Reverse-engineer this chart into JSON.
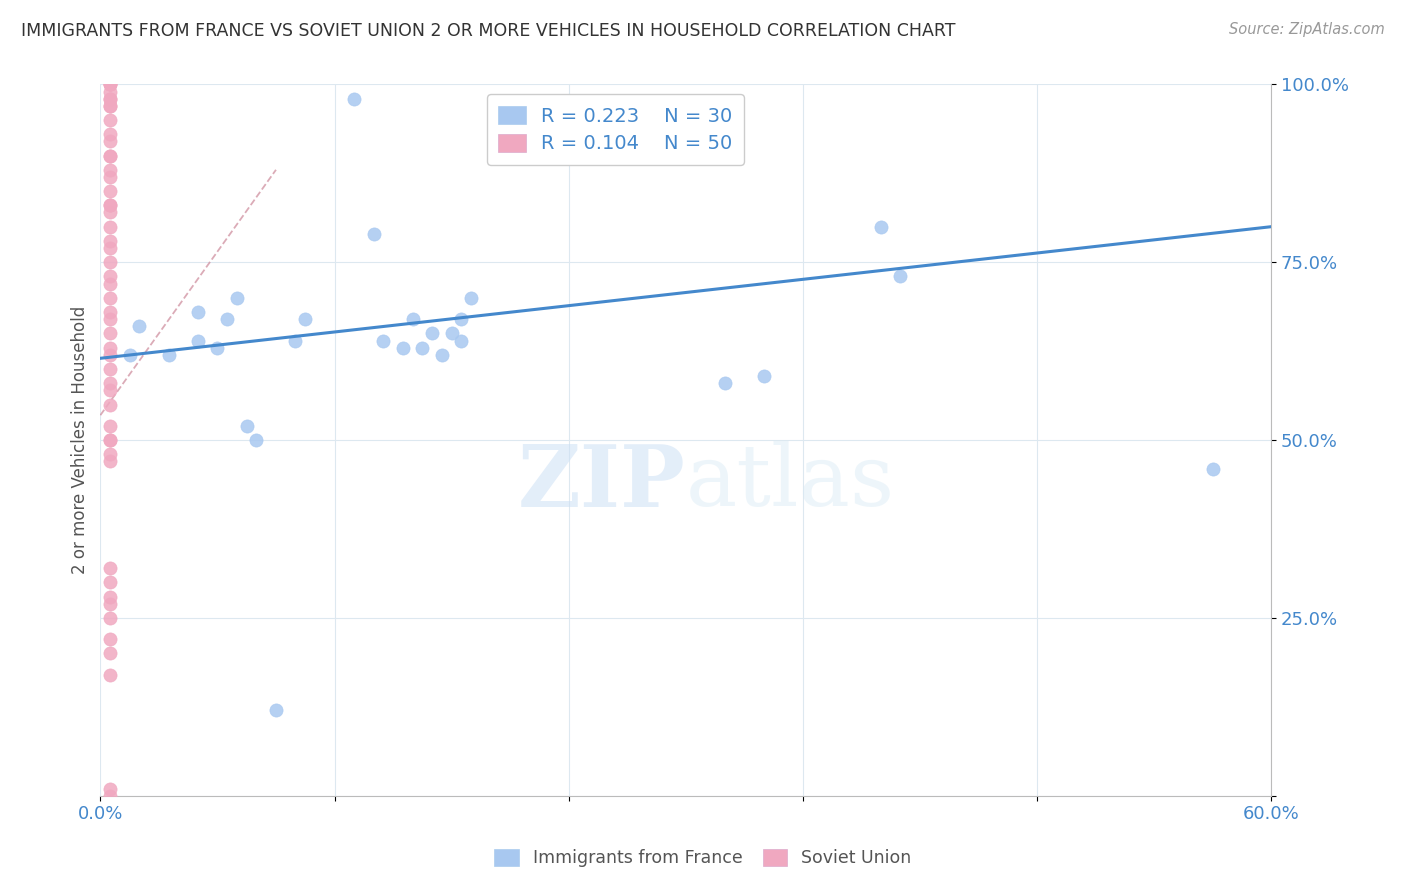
{
  "title": "IMMIGRANTS FROM FRANCE VS SOVIET UNION 2 OR MORE VEHICLES IN HOUSEHOLD CORRELATION CHART",
  "source": "Source: ZipAtlas.com",
  "ylabel": "2 or more Vehicles in Household",
  "watermark": "ZIPatlas",
  "xlim": [
    0.0,
    0.6
  ],
  "ylim": [
    0.0,
    1.0
  ],
  "ytick_vals": [
    0.0,
    0.25,
    0.5,
    0.75,
    1.0
  ],
  "ytick_labels": [
    "",
    "25.0%",
    "50.0%",
    "75.0%",
    "100.0%"
  ],
  "xtick_vals": [
    0.0,
    0.12,
    0.24,
    0.36,
    0.48,
    0.6
  ],
  "xtick_labels": [
    "0.0%",
    "",
    "",
    "",
    "",
    "60.0%"
  ],
  "legend_france_R": "0.223",
  "legend_france_N": "30",
  "legend_soviet_R": "0.104",
  "legend_soviet_N": "50",
  "france_color": "#a8c8f0",
  "france_edge_color": "#7aaad0",
  "soviet_color": "#f0a8c0",
  "soviet_edge_color": "#d080a0",
  "trendline_france_color": "#4488cc",
  "trendline_soviet_color": "#cc8899",
  "france_x": [
    0.015,
    0.02,
    0.035,
    0.05,
    0.05,
    0.06,
    0.065,
    0.07,
    0.075,
    0.08,
    0.09,
    0.1,
    0.105,
    0.13,
    0.14,
    0.145,
    0.155,
    0.16,
    0.165,
    0.17,
    0.175,
    0.18,
    0.185,
    0.185,
    0.19,
    0.32,
    0.34,
    0.4,
    0.41,
    0.57
  ],
  "france_y": [
    0.62,
    0.66,
    0.62,
    0.64,
    0.68,
    0.63,
    0.67,
    0.7,
    0.52,
    0.5,
    0.12,
    0.64,
    0.67,
    0.98,
    0.79,
    0.64,
    0.63,
    0.67,
    0.63,
    0.65,
    0.62,
    0.65,
    0.64,
    0.67,
    0.7,
    0.58,
    0.59,
    0.8,
    0.73,
    0.46
  ],
  "soviet_x": [
    0.005,
    0.005,
    0.005,
    0.005,
    0.005,
    0.005,
    0.005,
    0.005,
    0.005,
    0.005,
    0.005,
    0.005,
    0.005,
    0.005,
    0.005,
    0.005,
    0.005,
    0.005,
    0.005,
    0.005,
    0.005,
    0.005,
    0.005,
    0.005,
    0.005,
    0.005,
    0.005,
    0.005,
    0.005,
    0.005,
    0.005,
    0.005,
    0.005,
    0.005,
    0.005,
    0.005,
    0.005,
    0.005,
    0.005,
    0.005,
    0.005,
    0.005,
    0.005,
    0.005,
    0.005,
    0.005,
    0.005,
    0.005,
    0.005,
    0.005
  ],
  "soviet_y": [
    0.0,
    0.01,
    0.17,
    0.2,
    0.22,
    0.25,
    0.27,
    0.28,
    0.3,
    0.32,
    0.47,
    0.48,
    0.5,
    0.5,
    0.52,
    0.55,
    0.57,
    0.58,
    0.6,
    0.62,
    0.63,
    0.65,
    0.67,
    0.68,
    0.7,
    0.72,
    0.73,
    0.75,
    0.77,
    0.78,
    0.8,
    0.82,
    0.83,
    0.83,
    0.85,
    0.87,
    0.88,
    0.9,
    0.9,
    0.92,
    0.93,
    0.95,
    0.97,
    0.97,
    0.98,
    0.98,
    0.99,
    1.0,
    1.0,
    1.0
  ],
  "france_trend_x": [
    0.0,
    0.6
  ],
  "france_trend_y": [
    0.615,
    0.8
  ],
  "soviet_trend_x": [
    0.0,
    0.09
  ],
  "soviet_trend_y": [
    0.535,
    0.88
  ],
  "background_color": "#ffffff",
  "grid_color": "#dde8f0"
}
